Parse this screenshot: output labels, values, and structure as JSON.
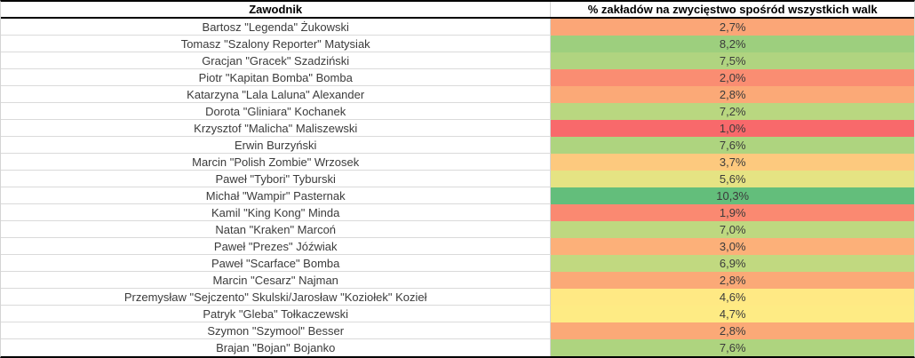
{
  "table": {
    "columns": [
      "Zawodnik",
      "% zakładów na zwycięstwo spośród wszystkich walk"
    ],
    "rows": [
      {
        "name": "Bartosz \"Legenda\" Żukowski",
        "value": "2,7%",
        "color": "#FBA677"
      },
      {
        "name": "Tomasz \"Szalony Reporter\" Matysiak",
        "value": "8,2%",
        "color": "#9DCF7E"
      },
      {
        "name": "Gracjan \"Gracek\" Szadziński",
        "value": "7,5%",
        "color": "#B0D480"
      },
      {
        "name": "Piotr \"Kapitan Bomba\" Bomba",
        "value": "2,0%",
        "color": "#FA8D72"
      },
      {
        "name": "Katarzyna \"Lala Laluna\" Alexander",
        "value": "2,8%",
        "color": "#FBA977"
      },
      {
        "name": "Dorota \"Gliniara\" Kochanek",
        "value": "7,2%",
        "color": "#B9D780"
      },
      {
        "name": "Krzysztof \"Malicha\" Maliszewski",
        "value": "1,0%",
        "color": "#F8696B"
      },
      {
        "name": "Erwin Burzyński",
        "value": "7,6%",
        "color": "#AED47F"
      },
      {
        "name": "Marcin \"Polish Zombie\" Wrzosek",
        "value": "3,7%",
        "color": "#FDC97E"
      },
      {
        "name": "Paweł \"Tybori\" Tyburski",
        "value": "5,6%",
        "color": "#E5E383"
      },
      {
        "name": "Michał \"Wampir\" Pasternak",
        "value": "10,3%",
        "color": "#63BE7B"
      },
      {
        "name": "Kamil \"King Kong\" Minda",
        "value": "1,9%",
        "color": "#FA8971"
      },
      {
        "name": "Natan \"Kraken\" Marcoń",
        "value": "7,0%",
        "color": "#BED880"
      },
      {
        "name": "Paweł \"Prezes\" Jóźwiak",
        "value": "3,0%",
        "color": "#FCB079"
      },
      {
        "name": "Paweł \"Scarface\" Bomba",
        "value": "6,9%",
        "color": "#C1D980"
      },
      {
        "name": "Marcin \"Cesarz\" Najman",
        "value": "2,8%",
        "color": "#FBA977"
      },
      {
        "name": "Przemysław \"Sejczento\" Skulski/Jarosław \"Koziołek\" Kozieł",
        "value": "4,6%",
        "color": "#FFE984"
      },
      {
        "name": "Patryk \"Gleba\" Tołkaczewski",
        "value": "4,7%",
        "color": "#FEEB84"
      },
      {
        "name": "Szymon \"Szymool\" Besser",
        "value": "2,8%",
        "color": "#FBA977"
      },
      {
        "name": "Brajan \"Bojan\" Bojanko",
        "value": "7,6%",
        "color": "#AED47F"
      }
    ]
  },
  "colors": {
    "border_heavy": "#000000",
    "border_light": "#d4d4d4",
    "row_separator": "#dadada",
    "header_text": "#000000",
    "cell_text": "#3b3b3b"
  },
  "chart_data": {
    "type": "table",
    "title": "",
    "columns": [
      "Zawodnik",
      "% zakładów na zwycięstwo spośród wszystkich walk"
    ],
    "rows": [
      [
        "Bartosz \"Legenda\" Żukowski",
        2.7
      ],
      [
        "Tomasz \"Szalony Reporter\" Matysiak",
        8.2
      ],
      [
        "Gracjan \"Gracek\" Szadziński",
        7.5
      ],
      [
        "Piotr \"Kapitan Bomba\" Bomba",
        2.0
      ],
      [
        "Katarzyna \"Lala Laluna\" Alexander",
        2.8
      ],
      [
        "Dorota \"Gliniara\" Kochanek",
        7.2
      ],
      [
        "Krzysztof \"Malicha\" Maliszewski",
        1.0
      ],
      [
        "Erwin Burzyński",
        7.6
      ],
      [
        "Marcin \"Polish Zombie\" Wrzosek",
        3.7
      ],
      [
        "Paweł \"Tybori\" Tyburski",
        5.6
      ],
      [
        "Michał \"Wampir\" Pasternak",
        10.3
      ],
      [
        "Kamil \"King Kong\" Minda",
        1.9
      ],
      [
        "Natan \"Kraken\" Marcoń",
        7.0
      ],
      [
        "Paweł \"Prezes\" Jóźwiak",
        3.0
      ],
      [
        "Paweł \"Scarface\" Bomba",
        6.9
      ],
      [
        "Marcin \"Cesarz\" Najman",
        2.8
      ],
      [
        "Przemysław \"Sejczento\" Skulski/Jarosław \"Koziołek\" Kozieł",
        4.6
      ],
      [
        "Patryk \"Gleba\" Tołkaczewski",
        4.7
      ],
      [
        "Szymon \"Szymool\" Besser",
        2.8
      ],
      [
        "Brajan \"Bojan\" Bojanko",
        7.6
      ]
    ],
    "value_format": "percent with comma decimal separator",
    "color_scale": {
      "type": "3-color-scale",
      "min_color": "#F8696B",
      "mid_color": "#FFEB84",
      "max_color": "#63BE7B",
      "min_value": 1.0,
      "max_value": 10.3
    }
  }
}
